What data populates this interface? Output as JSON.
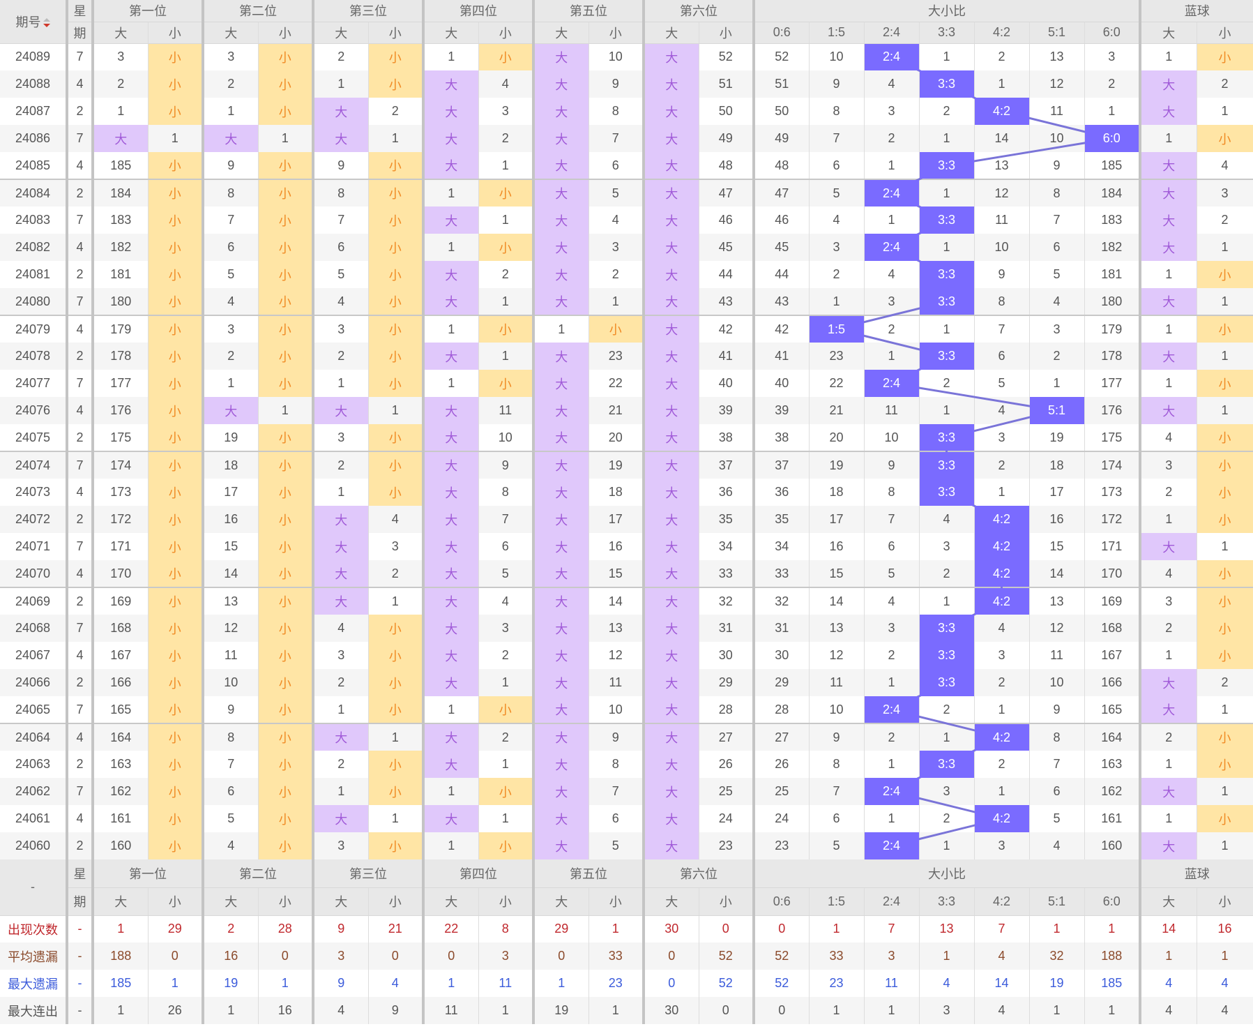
{
  "header": {
    "issue_label": "期号",
    "week_label": [
      "星",
      "期"
    ],
    "groups": [
      "第一位",
      "第二位",
      "第三位",
      "第四位",
      "第五位",
      "第六位"
    ],
    "ratio_group": "大小比",
    "blue_group": "蓝球",
    "big": "大",
    "small": "小",
    "ratios": [
      "0:6",
      "1:5",
      "2:4",
      "3:3",
      "4:2",
      "5:1",
      "6:0"
    ]
  },
  "colors": {
    "big_bg": "#e0c8fb",
    "small_bg": "#ffe5a5",
    "ratio_bg": "#7a6bff",
    "trend_line": "#7a74d8",
    "stat_count": "#c0282d",
    "stat_avg": "#8b4a2b",
    "stat_max_miss": "#3b5bdb",
    "stat_max_run": "#555555"
  },
  "rows": [
    {
      "issue": "24089",
      "week": "7",
      "cells": [
        "3",
        "小",
        "3",
        "小",
        "2",
        "小",
        "1",
        "小",
        "大",
        "10",
        "大",
        "52",
        "52",
        "10",
        "2:4",
        "1",
        "2",
        "13",
        "3",
        "1",
        "小"
      ]
    },
    {
      "issue": "24088",
      "week": "4",
      "cells": [
        "2",
        "小",
        "2",
        "小",
        "1",
        "小",
        "大",
        "4",
        "大",
        "9",
        "大",
        "51",
        "51",
        "9",
        "4",
        "3:3",
        "1",
        "12",
        "2",
        "大",
        "2"
      ]
    },
    {
      "issue": "24087",
      "week": "2",
      "cells": [
        "1",
        "小",
        "1",
        "小",
        "大",
        "2",
        "大",
        "3",
        "大",
        "8",
        "大",
        "50",
        "50",
        "8",
        "3",
        "2",
        "4:2",
        "11",
        "1",
        "大",
        "1"
      ]
    },
    {
      "issue": "24086",
      "week": "7",
      "cells": [
        "大",
        "1",
        "大",
        "1",
        "大",
        "1",
        "大",
        "2",
        "大",
        "7",
        "大",
        "49",
        "49",
        "7",
        "2",
        "1",
        "14",
        "10",
        "6:0",
        "1",
        "小"
      ]
    },
    {
      "issue": "24085",
      "week": "4",
      "cells": [
        "185",
        "小",
        "9",
        "小",
        "9",
        "小",
        "大",
        "1",
        "大",
        "6",
        "大",
        "48",
        "48",
        "6",
        "1",
        "3:3",
        "13",
        "9",
        "185",
        "大",
        "4"
      ]
    },
    {
      "issue": "24084",
      "week": "2",
      "cells": [
        "184",
        "小",
        "8",
        "小",
        "8",
        "小",
        "1",
        "小",
        "大",
        "5",
        "大",
        "47",
        "47",
        "5",
        "2:4",
        "1",
        "12",
        "8",
        "184",
        "大",
        "3"
      ]
    },
    {
      "issue": "24083",
      "week": "7",
      "cells": [
        "183",
        "小",
        "7",
        "小",
        "7",
        "小",
        "大",
        "1",
        "大",
        "4",
        "大",
        "46",
        "46",
        "4",
        "1",
        "3:3",
        "11",
        "7",
        "183",
        "大",
        "2"
      ]
    },
    {
      "issue": "24082",
      "week": "4",
      "cells": [
        "182",
        "小",
        "6",
        "小",
        "6",
        "小",
        "1",
        "小",
        "大",
        "3",
        "大",
        "45",
        "45",
        "3",
        "2:4",
        "1",
        "10",
        "6",
        "182",
        "大",
        "1"
      ]
    },
    {
      "issue": "24081",
      "week": "2",
      "cells": [
        "181",
        "小",
        "5",
        "小",
        "5",
        "小",
        "大",
        "2",
        "大",
        "2",
        "大",
        "44",
        "44",
        "2",
        "4",
        "3:3",
        "9",
        "5",
        "181",
        "1",
        "小"
      ]
    },
    {
      "issue": "24080",
      "week": "7",
      "cells": [
        "180",
        "小",
        "4",
        "小",
        "4",
        "小",
        "大",
        "1",
        "大",
        "1",
        "大",
        "43",
        "43",
        "1",
        "3",
        "3:3",
        "8",
        "4",
        "180",
        "大",
        "1"
      ]
    },
    {
      "issue": "24079",
      "week": "4",
      "cells": [
        "179",
        "小",
        "3",
        "小",
        "3",
        "小",
        "1",
        "小",
        "1",
        "小",
        "大",
        "42",
        "42",
        "1:5",
        "2",
        "1",
        "7",
        "3",
        "179",
        "1",
        "小"
      ]
    },
    {
      "issue": "24078",
      "week": "2",
      "cells": [
        "178",
        "小",
        "2",
        "小",
        "2",
        "小",
        "大",
        "1",
        "大",
        "23",
        "大",
        "41",
        "41",
        "23",
        "1",
        "3:3",
        "6",
        "2",
        "178",
        "大",
        "1"
      ]
    },
    {
      "issue": "24077",
      "week": "7",
      "cells": [
        "177",
        "小",
        "1",
        "小",
        "1",
        "小",
        "1",
        "小",
        "大",
        "22",
        "大",
        "40",
        "40",
        "22",
        "2:4",
        "2",
        "5",
        "1",
        "177",
        "1",
        "小"
      ]
    },
    {
      "issue": "24076",
      "week": "4",
      "cells": [
        "176",
        "小",
        "大",
        "1",
        "大",
        "1",
        "大",
        "11",
        "大",
        "21",
        "大",
        "39",
        "39",
        "21",
        "11",
        "1",
        "4",
        "5:1",
        "176",
        "大",
        "1"
      ]
    },
    {
      "issue": "24075",
      "week": "2",
      "cells": [
        "175",
        "小",
        "19",
        "小",
        "3",
        "小",
        "大",
        "10",
        "大",
        "20",
        "大",
        "38",
        "38",
        "20",
        "10",
        "3:3",
        "3",
        "19",
        "175",
        "4",
        "小"
      ]
    },
    {
      "issue": "24074",
      "week": "7",
      "cells": [
        "174",
        "小",
        "18",
        "小",
        "2",
        "小",
        "大",
        "9",
        "大",
        "19",
        "大",
        "37",
        "37",
        "19",
        "9",
        "3:3",
        "2",
        "18",
        "174",
        "3",
        "小"
      ]
    },
    {
      "issue": "24073",
      "week": "4",
      "cells": [
        "173",
        "小",
        "17",
        "小",
        "1",
        "小",
        "大",
        "8",
        "大",
        "18",
        "大",
        "36",
        "36",
        "18",
        "8",
        "3:3",
        "1",
        "17",
        "173",
        "2",
        "小"
      ]
    },
    {
      "issue": "24072",
      "week": "2",
      "cells": [
        "172",
        "小",
        "16",
        "小",
        "大",
        "4",
        "大",
        "7",
        "大",
        "17",
        "大",
        "35",
        "35",
        "17",
        "7",
        "4",
        "4:2",
        "16",
        "172",
        "1",
        "小"
      ]
    },
    {
      "issue": "24071",
      "week": "7",
      "cells": [
        "171",
        "小",
        "15",
        "小",
        "大",
        "3",
        "大",
        "6",
        "大",
        "16",
        "大",
        "34",
        "34",
        "16",
        "6",
        "3",
        "4:2",
        "15",
        "171",
        "大",
        "1"
      ]
    },
    {
      "issue": "24070",
      "week": "4",
      "cells": [
        "170",
        "小",
        "14",
        "小",
        "大",
        "2",
        "大",
        "5",
        "大",
        "15",
        "大",
        "33",
        "33",
        "15",
        "5",
        "2",
        "4:2",
        "14",
        "170",
        "4",
        "小"
      ]
    },
    {
      "issue": "24069",
      "week": "2",
      "cells": [
        "169",
        "小",
        "13",
        "小",
        "大",
        "1",
        "大",
        "4",
        "大",
        "14",
        "大",
        "32",
        "32",
        "14",
        "4",
        "1",
        "4:2",
        "13",
        "169",
        "3",
        "小"
      ]
    },
    {
      "issue": "24068",
      "week": "7",
      "cells": [
        "168",
        "小",
        "12",
        "小",
        "4",
        "小",
        "大",
        "3",
        "大",
        "13",
        "大",
        "31",
        "31",
        "13",
        "3",
        "3:3",
        "4",
        "12",
        "168",
        "2",
        "小"
      ]
    },
    {
      "issue": "24067",
      "week": "4",
      "cells": [
        "167",
        "小",
        "11",
        "小",
        "3",
        "小",
        "大",
        "2",
        "大",
        "12",
        "大",
        "30",
        "30",
        "12",
        "2",
        "3:3",
        "3",
        "11",
        "167",
        "1",
        "小"
      ]
    },
    {
      "issue": "24066",
      "week": "2",
      "cells": [
        "166",
        "小",
        "10",
        "小",
        "2",
        "小",
        "大",
        "1",
        "大",
        "11",
        "大",
        "29",
        "29",
        "11",
        "1",
        "3:3",
        "2",
        "10",
        "166",
        "大",
        "2"
      ]
    },
    {
      "issue": "24065",
      "week": "7",
      "cells": [
        "165",
        "小",
        "9",
        "小",
        "1",
        "小",
        "1",
        "小",
        "大",
        "10",
        "大",
        "28",
        "28",
        "10",
        "2:4",
        "2",
        "1",
        "9",
        "165",
        "大",
        "1"
      ]
    },
    {
      "issue": "24064",
      "week": "4",
      "cells": [
        "164",
        "小",
        "8",
        "小",
        "大",
        "1",
        "大",
        "2",
        "大",
        "9",
        "大",
        "27",
        "27",
        "9",
        "2",
        "1",
        "4:2",
        "8",
        "164",
        "2",
        "小"
      ]
    },
    {
      "issue": "24063",
      "week": "2",
      "cells": [
        "163",
        "小",
        "7",
        "小",
        "2",
        "小",
        "大",
        "1",
        "大",
        "8",
        "大",
        "26",
        "26",
        "8",
        "1",
        "3:3",
        "2",
        "7",
        "163",
        "1",
        "小"
      ]
    },
    {
      "issue": "24062",
      "week": "7",
      "cells": [
        "162",
        "小",
        "6",
        "小",
        "1",
        "小",
        "1",
        "小",
        "大",
        "7",
        "大",
        "25",
        "25",
        "7",
        "2:4",
        "3",
        "1",
        "6",
        "162",
        "大",
        "1"
      ]
    },
    {
      "issue": "24061",
      "week": "4",
      "cells": [
        "161",
        "小",
        "5",
        "小",
        "大",
        "1",
        "大",
        "1",
        "大",
        "6",
        "大",
        "24",
        "24",
        "6",
        "1",
        "2",
        "4:2",
        "5",
        "161",
        "1",
        "小"
      ]
    },
    {
      "issue": "24060",
      "week": "2",
      "cells": [
        "160",
        "小",
        "4",
        "小",
        "3",
        "小",
        "1",
        "小",
        "大",
        "5",
        "大",
        "23",
        "23",
        "5",
        "2:4",
        "1",
        "3",
        "4",
        "160",
        "大",
        "1"
      ]
    }
  ],
  "footer_header": {
    "issue_label": "-"
  },
  "stats": [
    {
      "label": "出现次数",
      "week": "-",
      "color_key": "stat_count",
      "values": [
        "1",
        "29",
        "2",
        "28",
        "9",
        "21",
        "22",
        "8",
        "29",
        "1",
        "30",
        "0",
        "0",
        "1",
        "7",
        "13",
        "7",
        "1",
        "1",
        "14",
        "16"
      ]
    },
    {
      "label": "平均遗漏",
      "week": "-",
      "color_key": "stat_avg",
      "values": [
        "188",
        "0",
        "16",
        "0",
        "3",
        "0",
        "0",
        "3",
        "0",
        "33",
        "0",
        "52",
        "52",
        "33",
        "3",
        "1",
        "4",
        "32",
        "188",
        "1",
        "1"
      ]
    },
    {
      "label": "最大遗漏",
      "week": "-",
      "color_key": "stat_max_miss",
      "values": [
        "185",
        "1",
        "19",
        "1",
        "9",
        "4",
        "1",
        "11",
        "1",
        "23",
        "0",
        "52",
        "52",
        "23",
        "11",
        "4",
        "14",
        "19",
        "185",
        "4",
        "4"
      ]
    },
    {
      "label": "最大连出",
      "week": "-",
      "color_key": "stat_max_run",
      "values": [
        "1",
        "26",
        "1",
        "16",
        "4",
        "9",
        "11",
        "1",
        "19",
        "1",
        "30",
        "0",
        "0",
        "1",
        "1",
        "3",
        "4",
        "1",
        "1",
        "4",
        "4"
      ]
    }
  ]
}
